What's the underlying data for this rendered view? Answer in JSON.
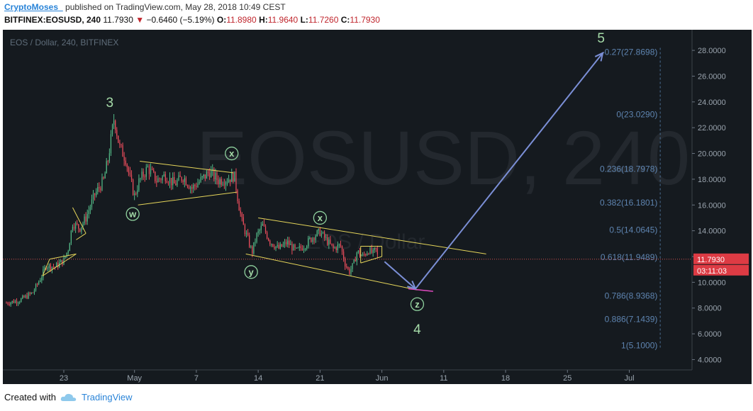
{
  "header": {
    "author": "CryptoMoses_",
    "published": "published on TradingView.com, May 28, 2018 10:49 CEST",
    "symbol": "BITFINEX:EOSUSD, 240",
    "last": "11.7930",
    "change": "−0.6460 (−5.19%)",
    "o_label": "O:",
    "o": "11.8980",
    "h_label": "H:",
    "h": "11.9640",
    "l_label": "L:",
    "l": "11.7260",
    "c_label": "C:",
    "c": "11.7930"
  },
  "footer": {
    "created_with": "Created with",
    "brand": "TradingView"
  },
  "chart_data": {
    "type": "candlestick",
    "legend_text": "EOS / Dollar, 240, BITFINEX",
    "watermark": "EOSUSD, 240",
    "watermark_sub": "EOS / Dollar",
    "ylim": [
      3.2,
      29.6
    ],
    "y_ticks": [
      "4.0000",
      "6.0000",
      "8.0000",
      "10.0000",
      "12.0000",
      "14.0000",
      "16.0000",
      "18.0000",
      "20.0000",
      "22.0000",
      "24.0000",
      "26.0000",
      "28.0000"
    ],
    "y_tick_values": [
      4,
      6,
      8,
      10,
      12,
      14,
      16,
      18,
      20,
      22,
      24,
      26,
      28
    ],
    "x_ticks": [
      "23",
      "May",
      "7",
      "14",
      "21",
      "Jun",
      "11",
      "18",
      "25",
      "Jul"
    ],
    "x_tick_days": [
      -8,
      0,
      7,
      14,
      21,
      28,
      35,
      42,
      49,
      56
    ],
    "current_price": "11.7930",
    "countdown": "03:11:03",
    "fib_levels": [
      {
        "label": "-0.27(27.8698)",
        "value": 27.8698
      },
      {
        "label": "0(23.0290)",
        "value": 23.029
      },
      {
        "label": "0.236(18.7978)",
        "value": 18.7978
      },
      {
        "label": "0.382(16.1801)",
        "value": 16.1801
      },
      {
        "label": "0.5(14.0645)",
        "value": 14.0645
      },
      {
        "label": "0.618(11.9489)",
        "value": 11.9489
      },
      {
        "label": "0.786(8.9368)",
        "value": 8.9368
      },
      {
        "label": "0.886(7.1439)",
        "value": 7.1439
      },
      {
        "label": "1(5.1000)",
        "value": 5.1
      }
    ],
    "price_path": [
      {
        "x": -14.5,
        "y": 8.4
      },
      {
        "x": -13,
        "y": 8.6
      },
      {
        "x": -11.5,
        "y": 9.2
      },
      {
        "x": -10.5,
        "y": 10.5
      },
      {
        "x": -10,
        "y": 11.3
      },
      {
        "x": -9,
        "y": 11.2
      },
      {
        "x": -8,
        "y": 11.7
      },
      {
        "x": -7.5,
        "y": 12.6
      },
      {
        "x": -7,
        "y": 14.6
      },
      {
        "x": -6.2,
        "y": 14.2
      },
      {
        "x": -5.5,
        "y": 15.0
      },
      {
        "x": -4.5,
        "y": 16.8
      },
      {
        "x": -3.5,
        "y": 17.9
      },
      {
        "x": -3,
        "y": 19.5
      },
      {
        "x": -2.3,
        "y": 22.8
      },
      {
        "x": -1.7,
        "y": 20.5
      },
      {
        "x": -1,
        "y": 19.6
      },
      {
        "x": -0.5,
        "y": 18.0
      },
      {
        "x": 0,
        "y": 16.7
      },
      {
        "x": 0.5,
        "y": 17.8
      },
      {
        "x": 1.5,
        "y": 18.9
      },
      {
        "x": 2.5,
        "y": 17.9
      },
      {
        "x": 3.5,
        "y": 18.3
      },
      {
        "x": 4.5,
        "y": 17.6
      },
      {
        "x": 5.5,
        "y": 18.2
      },
      {
        "x": 6.5,
        "y": 17.3
      },
      {
        "x": 7.5,
        "y": 17.9
      },
      {
        "x": 8.5,
        "y": 18.6
      },
      {
        "x": 9.5,
        "y": 17.9
      },
      {
        "x": 10.5,
        "y": 18.0
      },
      {
        "x": 11.3,
        "y": 18.3
      },
      {
        "x": 11.8,
        "y": 16.0
      },
      {
        "x": 12.2,
        "y": 14.6
      },
      {
        "x": 12.8,
        "y": 13.4
      },
      {
        "x": 13.3,
        "y": 12.3
      },
      {
        "x": 13.8,
        "y": 13.6
      },
      {
        "x": 14.5,
        "y": 14.4
      },
      {
        "x": 15.3,
        "y": 13.2
      },
      {
        "x": 16.3,
        "y": 12.6
      },
      {
        "x": 17.3,
        "y": 13.1
      },
      {
        "x": 18.3,
        "y": 12.4
      },
      {
        "x": 19.3,
        "y": 12.9
      },
      {
        "x": 20.3,
        "y": 13.6
      },
      {
        "x": 21,
        "y": 13.9
      },
      {
        "x": 21.8,
        "y": 13.2
      },
      {
        "x": 22.5,
        "y": 12.6
      },
      {
        "x": 23.3,
        "y": 12.9
      },
      {
        "x": 23.8,
        "y": 11.5
      },
      {
        "x": 24.3,
        "y": 10.8
      },
      {
        "x": 24.8,
        "y": 11.4
      },
      {
        "x": 25.2,
        "y": 12.4
      },
      {
        "x": 25.8,
        "y": 12.0
      },
      {
        "x": 26.5,
        "y": 12.5
      },
      {
        "x": 27,
        "y": 12.2
      },
      {
        "x": 27.3,
        "y": 12.6
      },
      {
        "x": 27.6,
        "y": 11.79
      }
    ],
    "annotations": {
      "wave_labels": [
        {
          "text": "3",
          "x": -2.8,
          "y": 24.0,
          "circled": false
        },
        {
          "text": "w",
          "x": -0.2,
          "y": 15.3,
          "circled": true
        },
        {
          "text": "x",
          "x": 11.0,
          "y": 20.0,
          "circled": true
        },
        {
          "text": "y",
          "x": 13.2,
          "y": 10.8,
          "circled": true
        },
        {
          "text": "x",
          "x": 21.0,
          "y": 15.0,
          "circled": true
        },
        {
          "text": "z",
          "x": 32.0,
          "y": 8.3,
          "circled": true
        },
        {
          "text": "4",
          "x": 32.0,
          "y": 6.4,
          "circled": false
        },
        {
          "text": "5",
          "x": 52.8,
          "y": 29.0,
          "circled": false
        }
      ],
      "channel_lines": [
        {
          "x1": 0.6,
          "y1": 19.4,
          "x2": 11.2,
          "y2": 18.5
        },
        {
          "x1": 0.4,
          "y1": 16.0,
          "x2": 11.6,
          "y2": 17.0
        },
        {
          "x1": 14.0,
          "y1": 15.0,
          "x2": 39.8,
          "y2": 12.2
        },
        {
          "x1": 12.6,
          "y1": 12.2,
          "x2": 32.0,
          "y2": 9.4
        },
        {
          "x1": -10.4,
          "y1": 10.5,
          "x2": -9.6,
          "y2": 11.8
        },
        {
          "x1": -9.6,
          "y1": 11.8,
          "x2": -6.6,
          "y2": 12.2
        },
        {
          "x1": -10.4,
          "y1": 10.5,
          "x2": -6.6,
          "y2": 12.2
        },
        {
          "x1": -7.0,
          "y1": 15.8,
          "x2": -5.5,
          "y2": 13.8
        },
        {
          "x1": -6.6,
          "y1": 13.3,
          "x2": -5.5,
          "y2": 13.8
        },
        {
          "x1": 25.6,
          "y1": 12.8,
          "x2": 28.0,
          "y2": 12.8
        },
        {
          "x1": 25.6,
          "y1": 11.5,
          "x2": 28.0,
          "y2": 12.0
        },
        {
          "x1": 25.6,
          "y1": 11.5,
          "x2": 25.6,
          "y2": 12.8
        },
        {
          "x1": 28.0,
          "y1": 12.0,
          "x2": 28.0,
          "y2": 12.8
        }
      ],
      "arrows": [
        {
          "x1": 28.3,
          "y1": 11.6,
          "x2": 31.8,
          "y2": 9.5
        },
        {
          "x1": 31.8,
          "y1": 9.5,
          "x2": 53.0,
          "y2": 27.8
        }
      ],
      "pink_segment": {
        "x1": 31.0,
        "y1": 9.5,
        "x2": 33.8,
        "y2": 9.3
      }
    }
  }
}
